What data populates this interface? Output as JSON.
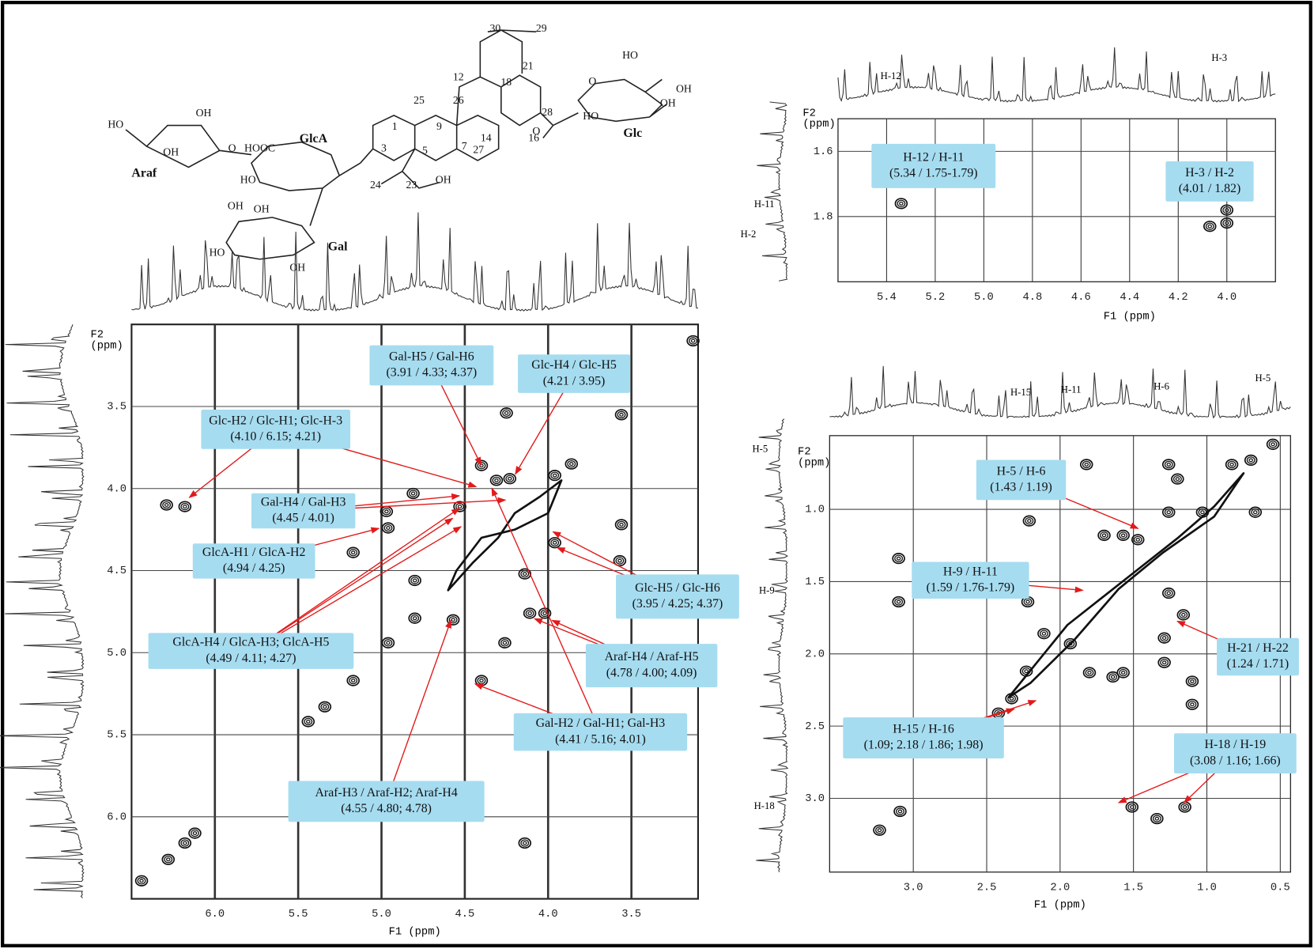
{
  "chart_data": [
    {
      "type": "contour",
      "xlabel": "F1 (ppm)",
      "ylabel": [
        "F2",
        "(ppm)"
      ],
      "grid": true,
      "xlim": [
        6.5,
        3.1
      ],
      "ylim": [
        3.0,
        6.5
      ],
      "xticks": [
        {
          "value": 6,
          "label": "6.0"
        },
        5.5,
        {
          "value": 5,
          "label": "5.0"
        },
        4.5,
        {
          "value": 4,
          "label": "4.0"
        },
        3.5
      ],
      "yticks": [
        3.5,
        {
          "value": 4,
          "label": "4.0"
        },
        4.5,
        {
          "value": 5,
          "label": "5.0"
        },
        5.5,
        {
          "value": 6,
          "label": "6.0"
        }
      ],
      "x": [
        3.13,
        4.25,
        3.56,
        6.18,
        6.29,
        4.97,
        4.96,
        5.17,
        4.81,
        4.4,
        4.31,
        4.23,
        3.96,
        3.86,
        4.53,
        3.56,
        3.57,
        3.96,
        4.14,
        4.8,
        4.8,
        4.57,
        4.11,
        4.02,
        4.96,
        4.26,
        5.17,
        5.34,
        5.44,
        4.4,
        4.14,
        6.18,
        6.28,
        6.44,
        6.12
      ],
      "y": [
        3.1,
        3.54,
        3.55,
        4.11,
        4.1,
        4.14,
        4.24,
        4.39,
        4.03,
        3.86,
        3.95,
        3.94,
        3.92,
        3.85,
        4.11,
        4.22,
        4.44,
        4.33,
        4.52,
        4.56,
        4.79,
        4.8,
        4.76,
        4.76,
        4.94,
        4.94,
        5.17,
        5.33,
        5.42,
        5.17,
        6.16,
        6.16,
        6.26,
        6.39,
        6.1
      ],
      "annotations": [
        {
          "lines": [
            "Gal-H5 / Gal-H6",
            "(3.91 / 4.33; 4.37)"
          ]
        },
        {
          "lines": [
            "Glc-H4 / Glc-H5",
            "(4.21 / 3.95)"
          ]
        },
        {
          "lines": [
            "Glc-H2 / Glc-H1; Glc-H-3",
            "(4.10 / 6.15; 4.21)"
          ]
        },
        {
          "lines": [
            "Gal-H4 / Gal-H3",
            "(4.45 / 4.01)"
          ]
        },
        {
          "lines": [
            "GlcA-H1 / GlcA-H2",
            "(4.94 / 4.25)"
          ]
        },
        {
          "lines": [
            "GlcA-H4 / GlcA-H3; GlcA-H5",
            "(4.49 / 4.11; 4.27)"
          ]
        },
        {
          "lines": [
            "Glc-H5 / Glc-H6",
            "(3.95 / 4.25; 4.37)"
          ]
        },
        {
          "lines": [
            "Araf-H4 / Araf-H5",
            "(4.78 / 4.00; 4.09)"
          ]
        },
        {
          "lines": [
            "Gal-H2 / Gal-H1; Gal-H3",
            "(4.41 / 5.16; 4.01)"
          ]
        },
        {
          "lines": [
            "Araf-H3 / Araf-H2; Araf-H4",
            "(4.55 / 4.80; 4.78)"
          ]
        }
      ],
      "top_labels": [],
      "left_labels": []
    },
    {
      "type": "contour",
      "xlabel": "F1 (ppm)",
      "ylabel": [
        "F2",
        "(ppm)"
      ],
      "grid": true,
      "xlim": [
        5.6,
        3.8
      ],
      "ylim": [
        1.5,
        2.0
      ],
      "xticks": [
        5.4,
        5.2,
        {
          "value": 5,
          "label": "5.0"
        },
        4.8,
        4.6,
        4.4,
        4.2,
        {
          "value": 4,
          "label": "4.0"
        }
      ],
      "yticks": [
        1.6,
        1.8
      ],
      "x": [
        5.34,
        4.0,
        4.0,
        4.07
      ],
      "y": [
        1.76,
        1.82,
        1.78,
        1.83
      ],
      "annotations": [
        {
          "lines": [
            "H-12 / H-11",
            "(5.34 / 1.75-1.79)"
          ]
        },
        {
          "lines": [
            "H-3 / H-2",
            "(4.01 / 1.82)"
          ]
        }
      ],
      "top_labels": [
        "H-12",
        "H-3"
      ],
      "left_labels": [
        "H-11",
        "H-2"
      ]
    },
    {
      "type": "contour",
      "xlabel": "F1 (ppm)",
      "ylabel": [
        "F2",
        "(ppm)"
      ],
      "grid": true,
      "xlim": [
        3.57,
        0.43
      ],
      "ylim": [
        0.49,
        3.51
      ],
      "xticks": [
        {
          "value": 3,
          "label": "3.0"
        },
        2.5,
        {
          "value": 2,
          "label": "2.0"
        },
        1.5,
        {
          "value": 1,
          "label": "1.0"
        },
        0.5
      ],
      "yticks": [
        {
          "value": 1,
          "label": "1.0"
        },
        1.5,
        {
          "value": 2,
          "label": "2.0"
        },
        2.5,
        {
          "value": 3,
          "label": "3.0"
        }
      ],
      "x": [
        0.7,
        0.55,
        1.26,
        1.82,
        1.2,
        0.83,
        2.21,
        1.26,
        1.03,
        0.67,
        1.7,
        1.57,
        1.47,
        3.1,
        3.1,
        2.22,
        1.26,
        1.16,
        2.11,
        1.29,
        1.93,
        1.8,
        1.57,
        2.23,
        1.29,
        1.1,
        1.1,
        2.33,
        2.42,
        3.09,
        1.51,
        1.34,
        3.23,
        1.15,
        1.64
      ],
      "y": [
        0.66,
        0.55,
        0.69,
        0.69,
        0.79,
        0.69,
        1.08,
        1.02,
        1.02,
        1.02,
        1.18,
        1.18,
        1.21,
        1.34,
        1.64,
        1.64,
        1.58,
        1.73,
        1.86,
        1.89,
        1.93,
        2.13,
        2.13,
        2.12,
        2.06,
        2.19,
        2.35,
        2.31,
        2.41,
        3.09,
        3.06,
        3.14,
        3.22,
        3.06,
        2.16
      ],
      "annotations": [
        {
          "lines": [
            "H-5 / H-6",
            "(1.43 / 1.19)"
          ]
        },
        {
          "lines": [
            "H-9 / H-11",
            "(1.59 / 1.76-1.79)"
          ]
        },
        {
          "lines": [
            "H-21 / H-22",
            "(1.24 / 1.71)"
          ]
        },
        {
          "lines": [
            "H-15 / H-16",
            "(1.09; 2.18 / 1.86; 1.98)"
          ]
        },
        {
          "lines": [
            "H-18 / H-19",
            "(3.08 / 1.16; 1.66)"
          ]
        }
      ],
      "top_labels": [
        "H-15",
        "H-11",
        "H-6",
        "H-5"
      ],
      "left_labels": [
        "H-5",
        "H-9",
        "H-18"
      ]
    }
  ],
  "structure": {
    "labels": [
      "30",
      "29",
      "21",
      "HO",
      "OH",
      "OH",
      "HO",
      "Glc",
      "12",
      "18",
      "25",
      "26",
      "28",
      "O",
      "OH",
      "HO",
      "HOOC",
      "GlcA",
      "OH",
      "Araf",
      "1",
      "9",
      "3",
      "5",
      "7",
      "14",
      "16",
      "HO",
      "24",
      "23",
      "OH",
      "27",
      "OH",
      "OH",
      "HO",
      "OH",
      "Gal",
      "O",
      "O"
    ]
  }
}
